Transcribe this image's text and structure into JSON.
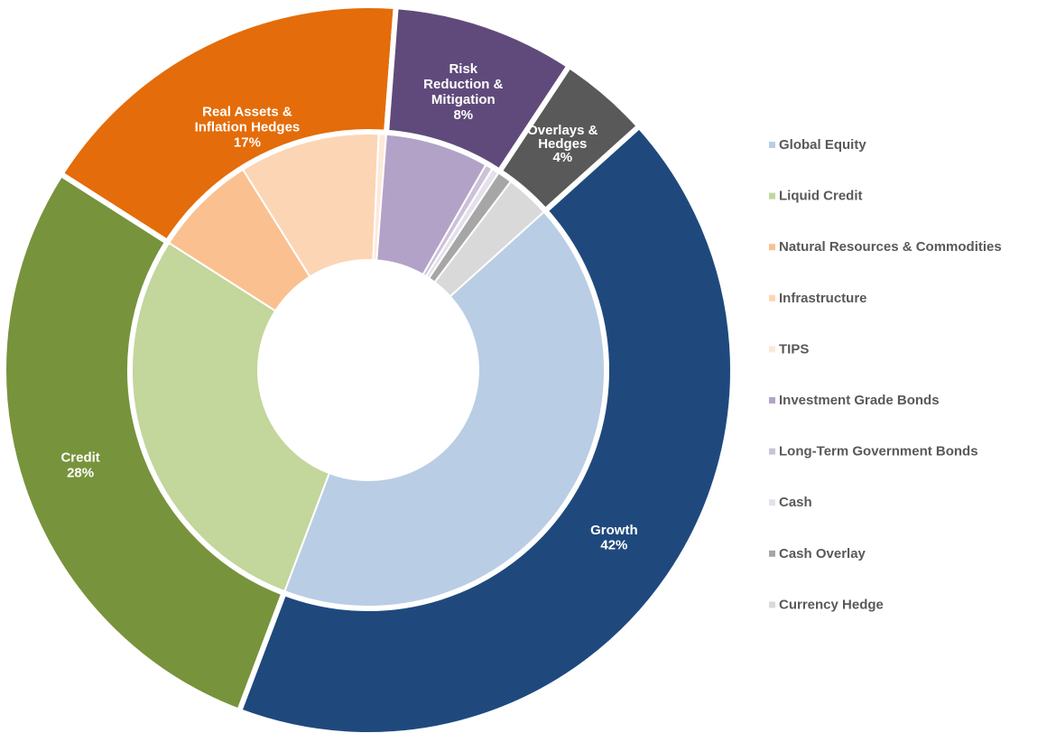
{
  "chart_data": {
    "type": "donut",
    "outer": {
      "categories": [
        "Growth",
        "Credit",
        "Real Assets & Inflation Hedges",
        "Risk Reduction & Mitigation",
        "Overlays & Hedges"
      ],
      "values": [
        42,
        28,
        17,
        8,
        4
      ],
      "value_labels": [
        "42%",
        "28%",
        "17%",
        "8%",
        "4%"
      ],
      "colors": [
        "#1f497d",
        "#77933c",
        "#e46c0a",
        "#604a7b",
        "#595959"
      ]
    },
    "inner": {
      "categories": [
        "Global Equity",
        "Liquid Credit",
        "Natural Resources & Commodities",
        "Infrastructure",
        "TIPS",
        "Investment Grade Bonds",
        "Long-Term Government Bonds",
        "Cash",
        "Cash Overlay",
        "Currency Hedge"
      ],
      "values": [
        42,
        28,
        7,
        9.5,
        0.5,
        7,
        0.5,
        0.5,
        1,
        3
      ],
      "colors": [
        "#b9cde5",
        "#c3d69b",
        "#fac090",
        "#fcd5b5",
        "#fde9d9",
        "#b3a2c7",
        "#ccc1da",
        "#e6e0ec",
        "#a6a6a6",
        "#d9d9d9"
      ]
    },
    "legend": "right"
  }
}
